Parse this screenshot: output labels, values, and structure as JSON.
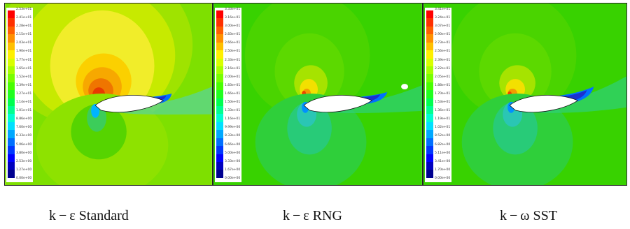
{
  "panels": [
    {
      "caption": "k − ε Standard",
      "legend": [
        "2.53e+01",
        "2.41e+01",
        "2.28e+01",
        "2.15e+01",
        "2.03e+01",
        "1.90e+01",
        "1.77e+01",
        "1.65e+01",
        "1.52e+01",
        "1.39e+01",
        "1.27e+01",
        "1.14e+01",
        "1.01e+01",
        "8.86e+00",
        "7.60e+00",
        "6.33e+00",
        "5.06e+00",
        "3.80e+00",
        "2.53e+00",
        "1.27e+00",
        "0.00e+00"
      ]
    },
    {
      "caption": "k − ε RNG",
      "legend": [
        "3.33e+01",
        "3.16e+01",
        "3.00e+01",
        "2.83e+01",
        "2.66e+01",
        "2.50e+01",
        "2.33e+01",
        "2.16e+01",
        "2.00e+01",
        "1.83e+01",
        "1.66e+01",
        "1.50e+01",
        "1.33e+01",
        "1.16e+01",
        "9.99e+00",
        "8.33e+00",
        "6.66e+00",
        "5.00e+00",
        "3.33e+00",
        "1.67e+00",
        "0.00e+00"
      ]
    },
    {
      "caption": "k − ω SST",
      "legend": [
        "3.41e+01",
        "3.24e+01",
        "3.07e+01",
        "2.90e+01",
        "2.73e+01",
        "2.56e+01",
        "2.39e+01",
        "2.22e+01",
        "2.05e+01",
        "1.88e+01",
        "1.70e+01",
        "1.53e+01",
        "1.36e+01",
        "1.19e+01",
        "1.02e+01",
        "8.52e+00",
        "6.82e+00",
        "5.11e+00",
        "3.41e+00",
        "1.70e+00",
        "0.00e+00"
      ]
    }
  ],
  "colormap": [
    "#ff0000",
    "#ff3000",
    "#ff6000",
    "#ff9000",
    "#ffc000",
    "#fff000",
    "#d8ff00",
    "#a8ff00",
    "#78ff00",
    "#48ff00",
    "#20ff20",
    "#00ff50",
    "#00ff90",
    "#00ffd0",
    "#00e0ff",
    "#00a8ff",
    "#0070ff",
    "#0038ff",
    "#0000ff",
    "#0000c0",
    "#000090"
  ]
}
